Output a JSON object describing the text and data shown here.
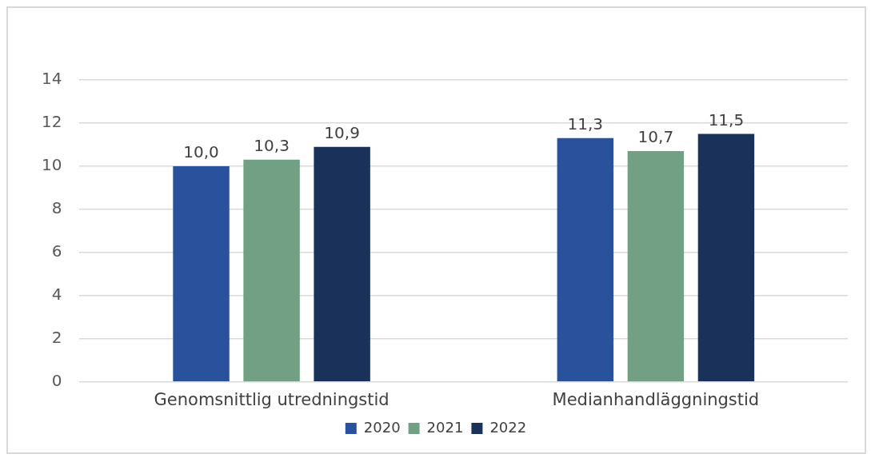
{
  "chart_data": {
    "type": "bar",
    "categories": [
      "Genomsnittlig utredningstid",
      "Medianhandläggningstid"
    ],
    "series": [
      {
        "name": "2020",
        "color": "#2a529c",
        "values": [
          10.0,
          11.3
        ],
        "value_labels": [
          "10,0",
          "11,3"
        ]
      },
      {
        "name": "2021",
        "color": "#72a084",
        "values": [
          10.3,
          10.7
        ],
        "value_labels": [
          "10,3",
          "10,7"
        ]
      },
      {
        "name": "2022",
        "color": "#1a3259",
        "values": [
          10.9,
          11.5
        ],
        "value_labels": [
          "10,9",
          "11,5"
        ]
      }
    ],
    "ylim": [
      0,
      14
    ],
    "yticks": [
      0,
      2,
      4,
      6,
      8,
      10,
      12,
      14
    ],
    "grid": "y",
    "legend": "bottom"
  }
}
